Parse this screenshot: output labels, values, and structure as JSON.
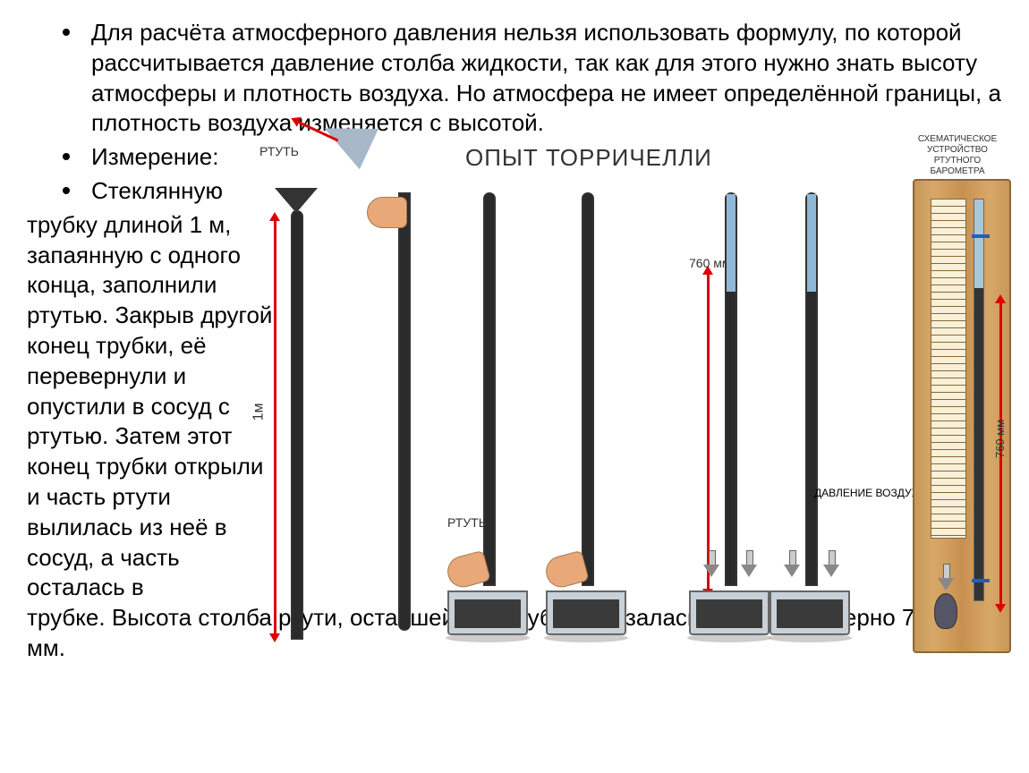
{
  "bullets": {
    "p1": "Для расчёта атмосферного давления нельзя использовать формулу, по которой рассчитывается давление столба жидкости, так как для этого нужно знать высоту атмосферы и плотность воздуха. Но атмосфера не имеет определённой границы, а плотность  воздуха изменяется с высотой.",
    "p2": "Измерение:",
    "p3": "Стеклянную",
    "cont": "трубку длиной 1 м,  запаянную с одного  конца, заполнили ртутью. Закрыв другой  конец трубки, её перевернули и опустили в сосуд с ртутью. Затем этот конец трубки открыли и часть ртути вылилась из неё в сосуд, а часть осталась в",
    "cont2": "трубке. Высота столба ртути, оставшейся в трубке, оказалась равной примерно 760 мм."
  },
  "diagram": {
    "title": "ОПЫТ ТОРРИЧЕЛЛИ",
    "barometer_title": "СХЕМАТИЧЕСКОЕ УСТРОЙСТВО РТУТНОГО БАРОМЕТРА",
    "mercury": "РТУТЬ",
    "air_pressure": "ДАВЛЕНИЕ ВОЗДУХА",
    "len_1m": "1м",
    "len_760": "760 мм",
    "bar_760": "760 мм"
  },
  "styling": {
    "bg_color": "#ffffff",
    "text_color": "#000000",
    "font_size_body": 26,
    "font_size_diagram_title": 26,
    "font_size_small_label": 14,
    "font_size_tiny": 10,
    "mercury_color": "#2a2a2a",
    "empty_tube_color": "#8fb8d8",
    "arrow_color": "#d00000",
    "hand_color": "#e8a878",
    "basin_color": "#c8d0d8",
    "wood_colors": [
      "#c89858",
      "#d8a868",
      "#c89050"
    ],
    "scale_color": "#f8f0d8",
    "tube_border": "#333333",
    "marker_color": "#2060c0",
    "tube_length_m": 1,
    "mercury_height_mm": 760,
    "diagram_tube_count": 6,
    "basin_count": 4
  }
}
